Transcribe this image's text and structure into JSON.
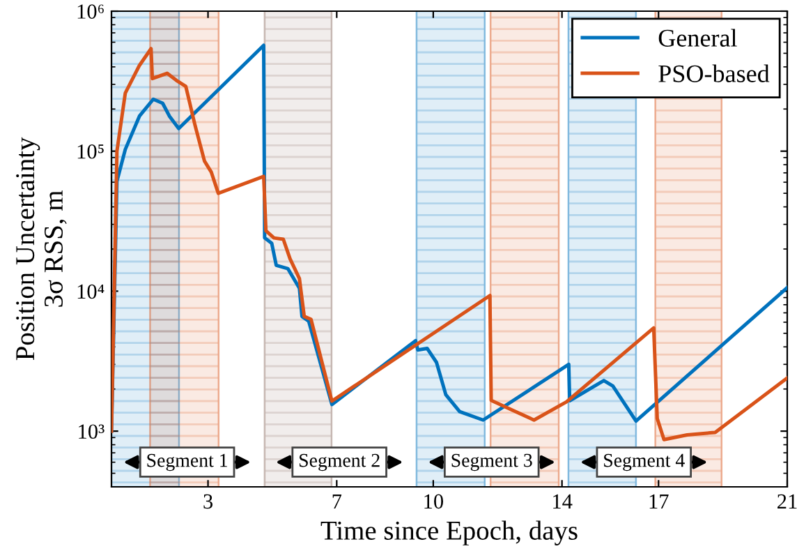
{
  "chart_data": {
    "type": "line",
    "xlabel": "Time since Epoch, days",
    "ylabel": "Position Uncertainty\n3σ RSS, m",
    "log": "y",
    "xlim": [
      0,
      21
    ],
    "xticks": [
      3,
      7,
      10,
      14,
      17,
      21
    ],
    "ylim": [
      400,
      1000000
    ],
    "yticks": [
      {
        "value": 1000,
        "label": "10³"
      },
      {
        "value": 10000,
        "label": "10⁴"
      },
      {
        "value": 100000,
        "label": "10⁵"
      },
      {
        "value": 1000000,
        "label": "10⁶"
      }
    ],
    "grid": false,
    "legend": "top right",
    "series": [
      {
        "name": "General",
        "color": "#0072bd",
        "x": [
          0,
          0.17,
          0.43,
          0.87,
          1.3,
          1.59,
          1.8,
          2.09,
          4.73,
          4.76,
          4.98,
          5.12,
          5.48,
          5.84,
          5.92,
          6.13,
          6.85,
          9.45,
          9.52,
          9.81,
          10.1,
          10.39,
          10.82,
          11.55,
          14.21,
          14.24,
          15.3,
          15.58,
          16.3,
          21
        ],
        "values": [
          1000,
          61000,
          103000,
          178000,
          235000,
          220000,
          178000,
          145000,
          570000,
          24000,
          22000,
          15300,
          14500,
          10500,
          6600,
          6100,
          1550,
          4430,
          3800,
          3900,
          3100,
          1820,
          1380,
          1200,
          3000,
          1650,
          2300,
          2100,
          1180,
          10600
        ]
      },
      {
        "name": "PSO-based",
        "color": "#d95319",
        "x": [
          0,
          0.17,
          0.43,
          0.87,
          1.23,
          1.27,
          1.73,
          2.02,
          2.31,
          2.6,
          2.89,
          3.1,
          3.32,
          4.73,
          4.8,
          5.05,
          5.34,
          5.55,
          5.84,
          5.99,
          6.2,
          6.85,
          11.76,
          11.8,
          12.41,
          13.13,
          14.14,
          16.85,
          16.96,
          17.17,
          17.89,
          18.76,
          21
        ],
        "values": [
          1000,
          100000,
          260000,
          410000,
          540000,
          330000,
          360000,
          320000,
          290000,
          152000,
          85000,
          71000,
          50000,
          66000,
          27000,
          24000,
          23500,
          17000,
          12300,
          6600,
          6300,
          1640,
          9300,
          1660,
          1430,
          1200,
          1620,
          5460,
          1230,
          870,
          940,
          980,
          2400
        ]
      }
    ],
    "bands": [
      {
        "axis": "x",
        "from": 0,
        "to": 2.1,
        "color": "#0072bd"
      },
      {
        "axis": "x",
        "from": 1.2,
        "to": 3.33,
        "color": "#d95319"
      },
      {
        "axis": "x",
        "from": 4.76,
        "to": 6.84,
        "color": "#8c6d62"
      },
      {
        "axis": "x",
        "from": 9.48,
        "to": 11.6,
        "color": "#0072bd"
      },
      {
        "axis": "x",
        "from": 11.78,
        "to": 13.9,
        "color": "#d95319"
      },
      {
        "axis": "x",
        "from": 14.2,
        "to": 16.3,
        "color": "#0072bd"
      },
      {
        "axis": "x",
        "from": 16.9,
        "to": 18.96,
        "color": "#d95319"
      }
    ],
    "annotations": [
      "Segment 1",
      "Segment 2",
      "Segment 3",
      "Segment 4"
    ]
  }
}
